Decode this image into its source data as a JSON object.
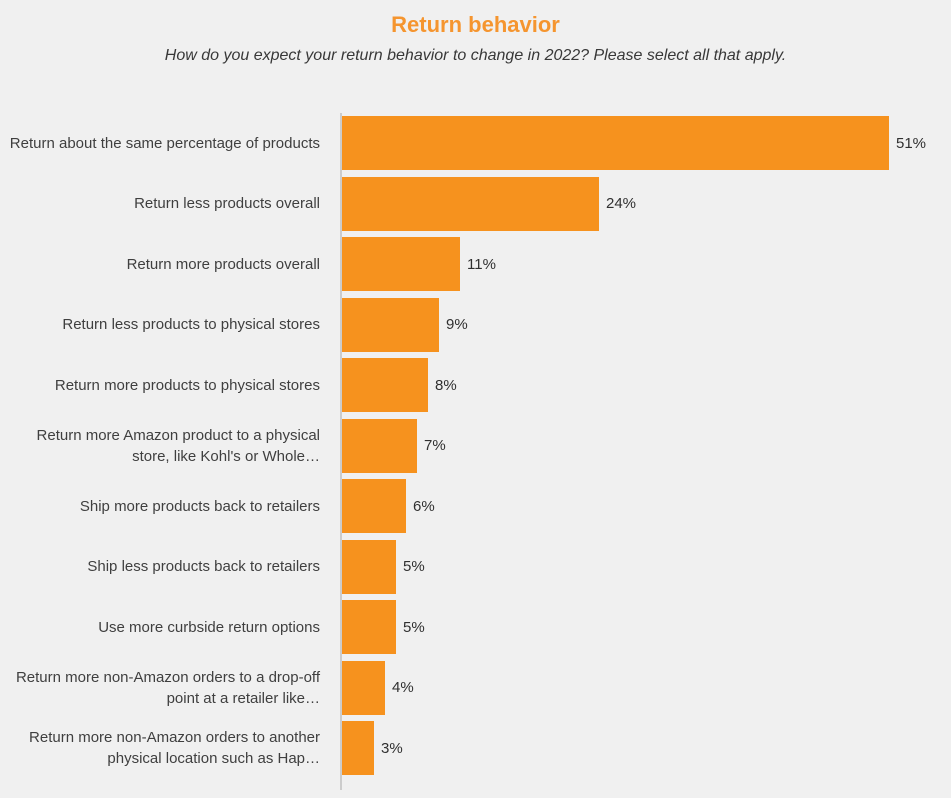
{
  "colors": {
    "background": "#F0F0F0",
    "bar": "#F6921E",
    "title": "#F5952F",
    "subtitle_text": "#383838",
    "label_text": "#3F3F3F",
    "value_text": "#303030",
    "axis": "#CCCCCC"
  },
  "chart_data": {
    "type": "bar",
    "orientation": "horizontal",
    "title": "Return behavior",
    "subtitle": "How do you expect your return behavior to change in 2022? Please select all that apply.",
    "categories": [
      "Return about the same percentage of products",
      "Return less products overall",
      "Return more products overall",
      "Return less products to physical stores",
      "Return more products to physical stores",
      "Return more Amazon product to a physical store, like Kohl's or Whole…",
      "Ship more products back to retailers",
      "Ship less products back to retailers",
      "Use more curbside return options",
      "Return more non-Amazon orders to a drop-off point at a retailer like…",
      "Return more non-Amazon orders to another physical location such as Hap…"
    ],
    "values": [
      51,
      24,
      11,
      9,
      8,
      7,
      6,
      5,
      5,
      4,
      3
    ],
    "value_labels": [
      "51%",
      "24%",
      "11%",
      "9%",
      "8%",
      "7%",
      "6%",
      "5%",
      "5%",
      "4%",
      "3%"
    ],
    "xlabel": "",
    "ylabel": "",
    "xlim": [
      0,
      57
    ],
    "grid": false,
    "legend": false,
    "data_labels": "outside-end"
  }
}
